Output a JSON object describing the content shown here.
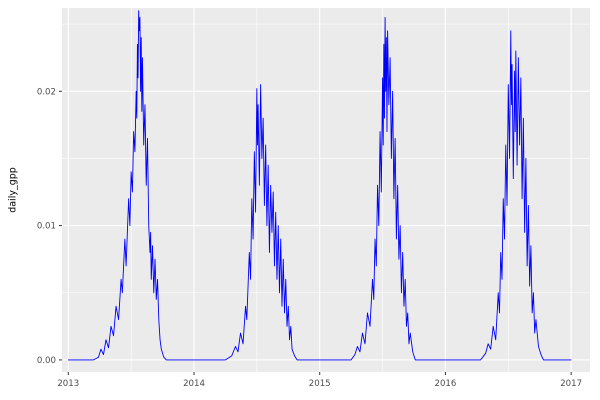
{
  "chart": {
    "colors": {
      "line": "#0000ff",
      "panel_bg": "#ebebeb",
      "grid_major": "#ffffff",
      "grid_minor": "#ffffff",
      "tick_mark": "#333333",
      "tick_label": "#4d4d4d",
      "axis_title": "#000000",
      "outer_bg": "#ffffff"
    }
  },
  "chart_data": {
    "type": "line",
    "title": "",
    "xlabel": "",
    "ylabel": "daily_gpp",
    "legend": false,
    "grid": true,
    "xlim": [
      2012.95,
      2017.15
    ],
    "ylim": [
      -0.0009,
      0.0262
    ],
    "x_ticks": [
      2013,
      2014,
      2015,
      2016,
      2017
    ],
    "x_tick_labels": [
      "2013",
      "2014",
      "2015",
      "2016",
      "2017"
    ],
    "x_minor_ticks": [
      2013.5,
      2014.5,
      2015.5,
      2016.5
    ],
    "y_ticks": [
      0,
      0.01,
      0.02
    ],
    "y_tick_labels": [
      "0.00",
      "0.01",
      "0.02"
    ],
    "y_minor_ticks": [
      0.005,
      0.015,
      0.025
    ],
    "series": [
      {
        "name": "daily_gpp",
        "color": "#0000ff",
        "points": [
          [
            2013.0,
            0
          ],
          [
            2013.1,
            0
          ],
          [
            2013.2,
            0
          ],
          [
            2013.24,
            0.0002
          ],
          [
            2013.26,
            0.0008
          ],
          [
            2013.28,
            0.0004
          ],
          [
            2013.3,
            0.0015
          ],
          [
            2013.32,
            0.0009
          ],
          [
            2013.34,
            0.0025
          ],
          [
            2013.36,
            0.0018
          ],
          [
            2013.38,
            0.004
          ],
          [
            2013.4,
            0.003
          ],
          [
            2013.42,
            0.006
          ],
          [
            2013.43,
            0.005
          ],
          [
            2013.45,
            0.009
          ],
          [
            2013.46,
            0.007
          ],
          [
            2013.48,
            0.012
          ],
          [
            2013.49,
            0.01
          ],
          [
            2013.5,
            0.014
          ],
          [
            2013.51,
            0.0125
          ],
          [
            2013.52,
            0.017
          ],
          [
            2013.53,
            0.0155
          ],
          [
            2013.54,
            0.02
          ],
          [
            2013.545,
            0.018
          ],
          [
            2013.55,
            0.0235
          ],
          [
            2013.555,
            0.021
          ],
          [
            2013.56,
            0.026
          ],
          [
            2013.565,
            0.0245
          ],
          [
            2013.57,
            0.0255
          ],
          [
            2013.575,
            0.02
          ],
          [
            2013.58,
            0.024
          ],
          [
            2013.585,
            0.0185
          ],
          [
            2013.59,
            0.0225
          ],
          [
            2013.6,
            0.016
          ],
          [
            2013.61,
            0.019
          ],
          [
            2013.62,
            0.013
          ],
          [
            2013.63,
            0.0165
          ],
          [
            2013.64,
            0.01
          ],
          [
            2013.65,
            0.008
          ],
          [
            2013.655,
            0.0095
          ],
          [
            2013.66,
            0.006
          ],
          [
            2013.67,
            0.0085
          ],
          [
            2013.68,
            0.005
          ],
          [
            2013.69,
            0.0075
          ],
          [
            2013.7,
            0.0045
          ],
          [
            2013.71,
            0.006
          ],
          [
            2013.72,
            0.003
          ],
          [
            2013.73,
            0.0015
          ],
          [
            2013.74,
            0.0008
          ],
          [
            2013.76,
            0.0002
          ],
          [
            2013.78,
            0
          ],
          [
            2013.9,
            0
          ],
          [
            2014.0,
            0
          ],
          [
            2014.1,
            0
          ],
          [
            2014.2,
            0
          ],
          [
            2014.25,
            0
          ],
          [
            2014.3,
            0.0003
          ],
          [
            2014.33,
            0.001
          ],
          [
            2014.35,
            0.0006
          ],
          [
            2014.37,
            0.002
          ],
          [
            2014.39,
            0.0012
          ],
          [
            2014.41,
            0.004
          ],
          [
            2014.42,
            0.003
          ],
          [
            2014.44,
            0.008
          ],
          [
            2014.45,
            0.006
          ],
          [
            2014.46,
            0.012
          ],
          [
            2014.47,
            0.009
          ],
          [
            2014.48,
            0.0155
          ],
          [
            2014.49,
            0.011
          ],
          [
            2014.5,
            0.0202
          ],
          [
            2014.505,
            0.016
          ],
          [
            2014.51,
            0.019
          ],
          [
            2014.52,
            0.013
          ],
          [
            2014.53,
            0.0205
          ],
          [
            2014.54,
            0.015
          ],
          [
            2014.55,
            0.018
          ],
          [
            2014.56,
            0.0115
          ],
          [
            2014.57,
            0.016
          ],
          [
            2014.58,
            0.01
          ],
          [
            2014.59,
            0.0145
          ],
          [
            2014.6,
            0.008
          ],
          [
            2014.61,
            0.013
          ],
          [
            2014.62,
            0.0095
          ],
          [
            2014.63,
            0.0125
          ],
          [
            2014.64,
            0.007
          ],
          [
            2014.65,
            0.011
          ],
          [
            2014.66,
            0.006
          ],
          [
            2014.67,
            0.01
          ],
          [
            2014.68,
            0.005
          ],
          [
            2014.69,
            0.009
          ],
          [
            2014.7,
            0.004
          ],
          [
            2014.71,
            0.0075
          ],
          [
            2014.72,
            0.0035
          ],
          [
            2014.73,
            0.006
          ],
          [
            2014.74,
            0.0025
          ],
          [
            2014.75,
            0.004
          ],
          [
            2014.76,
            0.0015
          ],
          [
            2014.77,
            0.0025
          ],
          [
            2014.78,
            0.0008
          ],
          [
            2014.8,
            0.0003
          ],
          [
            2014.82,
            0
          ],
          [
            2014.9,
            0
          ],
          [
            2015.0,
            0
          ],
          [
            2015.1,
            0
          ],
          [
            2015.2,
            0
          ],
          [
            2015.25,
            0
          ],
          [
            2015.28,
            0.0004
          ],
          [
            2015.3,
            0.001
          ],
          [
            2015.32,
            0.0006
          ],
          [
            2015.34,
            0.002
          ],
          [
            2015.36,
            0.0012
          ],
          [
            2015.38,
            0.0035
          ],
          [
            2015.4,
            0.0025
          ],
          [
            2015.42,
            0.006
          ],
          [
            2015.43,
            0.0045
          ],
          [
            2015.44,
            0.009
          ],
          [
            2015.45,
            0.007
          ],
          [
            2015.46,
            0.013
          ],
          [
            2015.47,
            0.01
          ],
          [
            2015.48,
            0.017
          ],
          [
            2015.49,
            0.0125
          ],
          [
            2015.5,
            0.021
          ],
          [
            2015.505,
            0.016
          ],
          [
            2015.51,
            0.0235
          ],
          [
            2015.515,
            0.018
          ],
          [
            2015.52,
            0.0255
          ],
          [
            2015.525,
            0.02
          ],
          [
            2015.53,
            0.024
          ],
          [
            2015.535,
            0.017
          ],
          [
            2015.54,
            0.0245
          ],
          [
            2015.55,
            0.019
          ],
          [
            2015.56,
            0.0225
          ],
          [
            2015.57,
            0.015
          ],
          [
            2015.58,
            0.02
          ],
          [
            2015.59,
            0.012
          ],
          [
            2015.6,
            0.0165
          ],
          [
            2015.61,
            0.009
          ],
          [
            2015.62,
            0.013
          ],
          [
            2015.63,
            0.0075
          ],
          [
            2015.64,
            0.01
          ],
          [
            2015.65,
            0.005
          ],
          [
            2015.66,
            0.008
          ],
          [
            2015.67,
            0.004
          ],
          [
            2015.68,
            0.006
          ],
          [
            2015.69,
            0.0025
          ],
          [
            2015.7,
            0.0035
          ],
          [
            2015.71,
            0.0012
          ],
          [
            2015.72,
            0.002
          ],
          [
            2015.74,
            0.0006
          ],
          [
            2015.76,
            0
          ],
          [
            2015.9,
            0
          ],
          [
            2016.0,
            0
          ],
          [
            2016.1,
            0
          ],
          [
            2016.2,
            0
          ],
          [
            2016.28,
            0
          ],
          [
            2016.32,
            0.0005
          ],
          [
            2016.34,
            0.0012
          ],
          [
            2016.36,
            0.0008
          ],
          [
            2016.38,
            0.0025
          ],
          [
            2016.4,
            0.0015
          ],
          [
            2016.42,
            0.005
          ],
          [
            2016.43,
            0.0035
          ],
          [
            2016.44,
            0.008
          ],
          [
            2016.45,
            0.006
          ],
          [
            2016.46,
            0.012
          ],
          [
            2016.47,
            0.009
          ],
          [
            2016.48,
            0.016
          ],
          [
            2016.49,
            0.0115
          ],
          [
            2016.5,
            0.0205
          ],
          [
            2016.51,
            0.015
          ],
          [
            2016.52,
            0.0245
          ],
          [
            2016.525,
            0.019
          ],
          [
            2016.53,
            0.022
          ],
          [
            2016.54,
            0.0135
          ],
          [
            2016.55,
            0.0215
          ],
          [
            2016.555,
            0.017
          ],
          [
            2016.56,
            0.023
          ],
          [
            2016.57,
            0.0145
          ],
          [
            2016.58,
            0.0225
          ],
          [
            2016.59,
            0.016
          ],
          [
            2016.6,
            0.021
          ],
          [
            2016.61,
            0.012
          ],
          [
            2016.62,
            0.018
          ],
          [
            2016.63,
            0.0095
          ],
          [
            2016.64,
            0.015
          ],
          [
            2016.65,
            0.007
          ],
          [
            2016.66,
            0.0115
          ],
          [
            2016.67,
            0.0055
          ],
          [
            2016.68,
            0.0085
          ],
          [
            2016.69,
            0.0035
          ],
          [
            2016.7,
            0.005
          ],
          [
            2016.71,
            0.002
          ],
          [
            2016.72,
            0.003
          ],
          [
            2016.74,
            0.001
          ],
          [
            2016.76,
            0.0004
          ],
          [
            2016.78,
            0
          ],
          [
            2016.9,
            0
          ],
          [
            2017.0,
            0
          ]
        ]
      }
    ]
  }
}
